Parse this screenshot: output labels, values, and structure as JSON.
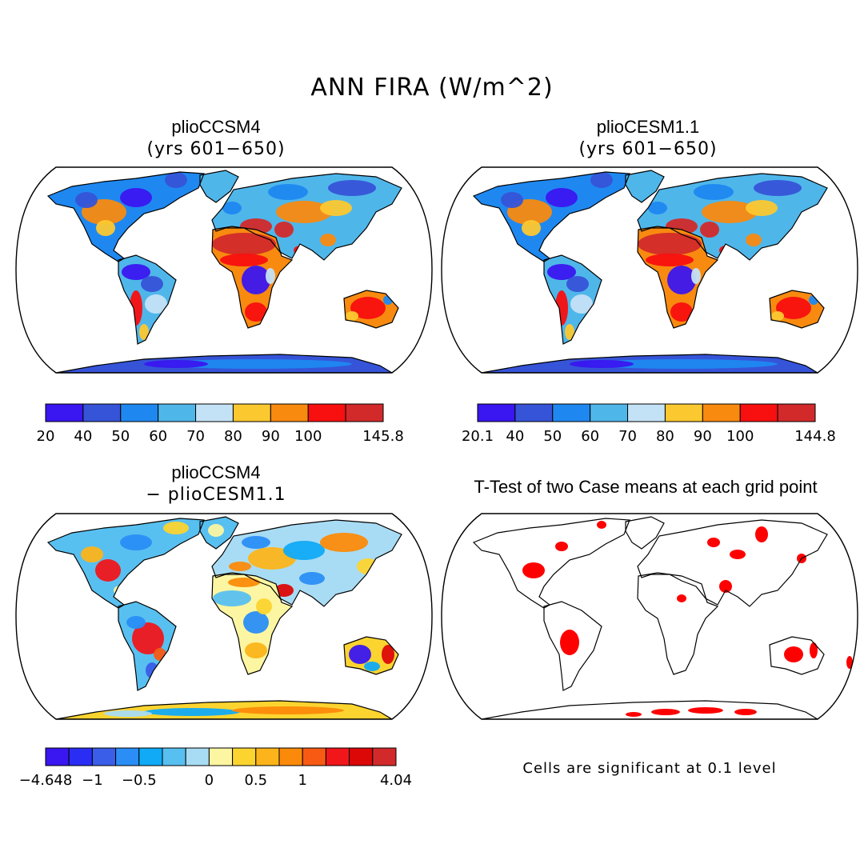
{
  "title": "ANN FIRA (W/m^2)",
  "panels": [
    {
      "title": "plioCCSM4",
      "subtitle": "(yrs 601−650)",
      "colorbar": {
        "colors": [
          "#3a16f0",
          "#3654d8",
          "#1f88f0",
          "#4fb6ea",
          "#c4e2f6",
          "#fcc830",
          "#f88a10",
          "#f80f0f",
          "#d22a2a"
        ],
        "labels": [
          "20",
          "40",
          "50",
          "60",
          "70",
          "80",
          "90",
          "100",
          "145.8"
        ]
      }
    },
    {
      "title": "plioCESM1.1",
      "subtitle": "(yrs 601−650)",
      "colorbar": {
        "colors": [
          "#3a16f0",
          "#3654d8",
          "#1f88f0",
          "#4fb6ea",
          "#c4e2f6",
          "#fcc830",
          "#f88a10",
          "#f80f0f",
          "#d22a2a"
        ],
        "labels": [
          "20.1",
          "40",
          "50",
          "60",
          "70",
          "80",
          "90",
          "100",
          "144.8"
        ]
      }
    },
    {
      "title": "plioCCSM4",
      "subtitle": "− plioCESM1.1",
      "colorbar": {
        "colors": [
          "#3a16f0",
          "#2a2ef5",
          "#3a5ee8",
          "#2a8ef6",
          "#10aaf6",
          "#58c0f0",
          "#a8dcf4",
          "#fcf6a2",
          "#fcd430",
          "#fcb41a",
          "#fc8a0a",
          "#f85a14",
          "#f0161a",
          "#dc0808",
          "#d22a2a"
        ],
        "labels": [
          "−4.648",
          "−1",
          "−0.5",
          "0",
          "0.5",
          "1",
          "4.04"
        ]
      }
    },
    {
      "title": "T-Test of two Case means at each grid point",
      "note": "Cells are significant at 0.1 level",
      "significant_color": "#ff0000"
    }
  ]
}
